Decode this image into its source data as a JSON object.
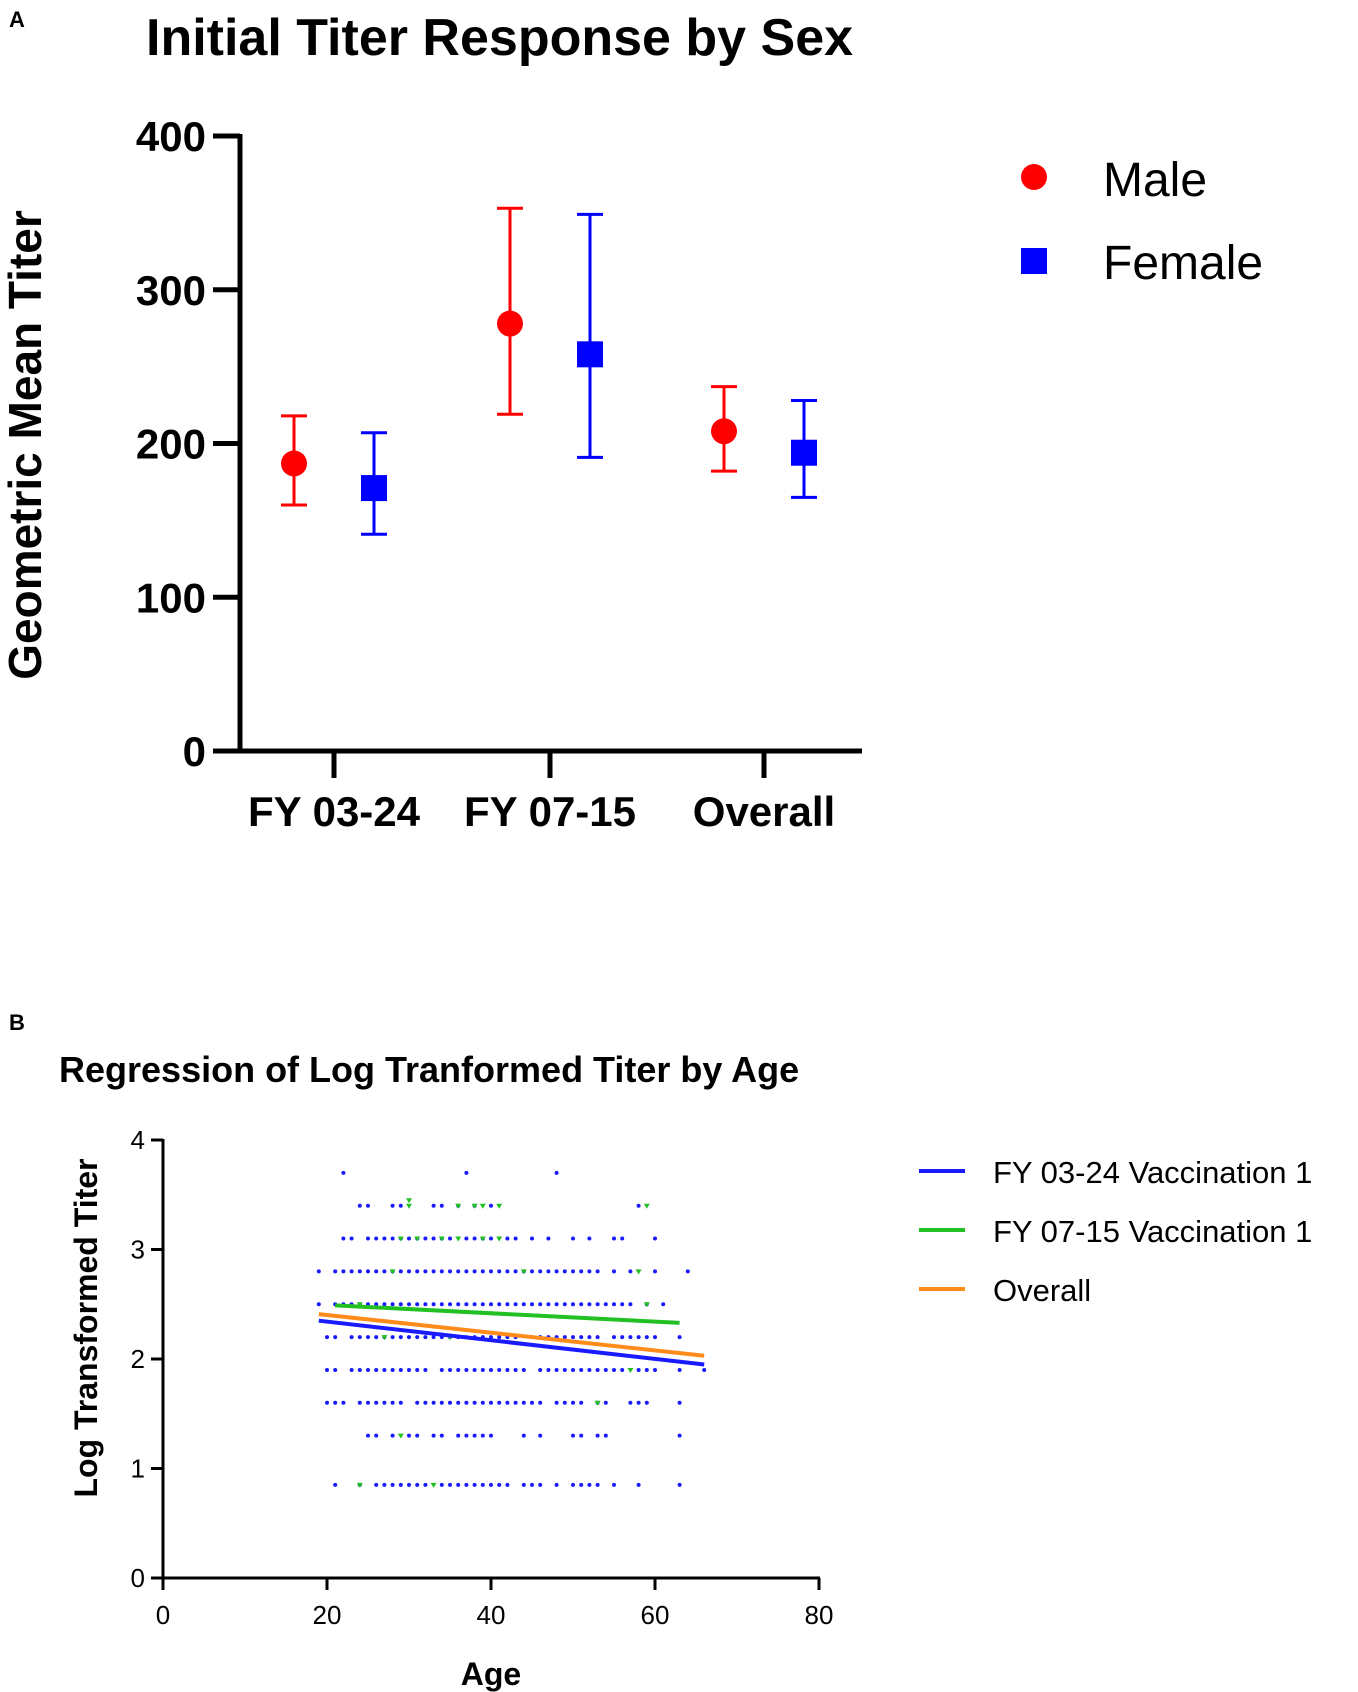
{
  "figure": {
    "panels": [
      "A",
      "B"
    ]
  },
  "chart_data": [
    {
      "type": "scatter",
      "title": "Initial Titer Response by Sex",
      "xlabel": "",
      "ylabel": "Geometric  Mean  Titer",
      "categories": [
        "FY 03-24",
        "FY 07-15",
        "Overall"
      ],
      "ylim": [
        0,
        400
      ],
      "yticks": [
        0,
        100,
        200,
        300,
        400
      ],
      "series": [
        {
          "name": "Male",
          "color": "#ff0000",
          "marker": "circle",
          "values": [
            187,
            278,
            208
          ],
          "lower": [
            160,
            219,
            182
          ],
          "upper": [
            218,
            353,
            237
          ]
        },
        {
          "name": "Female",
          "color": "#0000ff",
          "marker": "square",
          "values": [
            171,
            258,
            194
          ],
          "lower": [
            141,
            191,
            165
          ],
          "upper": [
            207,
            349,
            228
          ]
        }
      ],
      "legend": "top-right"
    },
    {
      "type": "scatter",
      "title": "Regression of Log Tranformed Titer by Age",
      "xlabel": "Age",
      "ylabel": "Log Transformed Titer",
      "xlim": [
        0,
        80
      ],
      "ylim": [
        0,
        4
      ],
      "xticks": [
        0,
        20,
        40,
        60,
        80
      ],
      "yticks": [
        0,
        1,
        2,
        3,
        4
      ],
      "legend": "right",
      "lines": [
        {
          "name": "FY 03-24 Vaccination 1",
          "color": "#1a1aff",
          "x": [
            19,
            66
          ],
          "y": [
            2.35,
            1.95
          ]
        },
        {
          "name": "FY 07-15 Vaccination 1",
          "color": "#22c022",
          "x": [
            21,
            63
          ],
          "y": [
            2.49,
            2.33
          ]
        },
        {
          "name": "Overall",
          "color": "#ff8c1a",
          "x": [
            19,
            66
          ],
          "y": [
            2.41,
            2.03
          ]
        }
      ],
      "points_fy0324": [
        {
          "y": 3.7,
          "x": [
            22,
            37,
            48
          ]
        },
        {
          "y": 3.4,
          "x": [
            24,
            25,
            28,
            29,
            33,
            34,
            36,
            38,
            40,
            58
          ]
        },
        {
          "y": 3.1,
          "x": [
            22,
            23,
            25,
            26,
            27,
            28,
            29,
            30,
            31,
            32,
            33,
            34,
            35,
            37,
            38,
            39,
            40,
            42,
            43,
            45,
            47,
            50,
            52,
            55,
            56,
            60
          ]
        },
        {
          "y": 2.8,
          "x": [
            19,
            21,
            22,
            23,
            24,
            25,
            26,
            27,
            28,
            29,
            30,
            31,
            32,
            33,
            34,
            35,
            36,
            37,
            38,
            39,
            40,
            41,
            42,
            43,
            44,
            45,
            46,
            47,
            48,
            49,
            50,
            51,
            52,
            53,
            55,
            57,
            60,
            64
          ]
        },
        {
          "y": 2.5,
          "x": [
            19,
            21,
            22,
            23,
            24,
            25,
            26,
            27,
            28,
            29,
            30,
            31,
            32,
            33,
            34,
            35,
            36,
            37,
            38,
            39,
            40,
            41,
            42,
            43,
            44,
            45,
            46,
            47,
            48,
            49,
            50,
            51,
            52,
            53,
            54,
            55,
            56,
            57,
            59,
            61
          ]
        },
        {
          "y": 2.2,
          "x": [
            20,
            21,
            23,
            24,
            25,
            26,
            27,
            28,
            29,
            30,
            31,
            32,
            33,
            34,
            35,
            36,
            37,
            38,
            39,
            40,
            41,
            42,
            43,
            45,
            46,
            47,
            48,
            49,
            50,
            51,
            52,
            53,
            55,
            56,
            57,
            58,
            59,
            60,
            63
          ]
        },
        {
          "y": 1.9,
          "x": [
            20,
            21,
            23,
            24,
            25,
            26,
            27,
            28,
            29,
            30,
            31,
            32,
            34,
            35,
            36,
            37,
            38,
            39,
            40,
            41,
            42,
            43,
            44,
            46,
            47,
            48,
            49,
            50,
            51,
            52,
            53,
            54,
            55,
            56,
            58,
            59,
            60,
            63,
            66
          ]
        },
        {
          "y": 1.6,
          "x": [
            20,
            21,
            22,
            24,
            25,
            26,
            27,
            28,
            29,
            31,
            32,
            33,
            34,
            35,
            36,
            37,
            38,
            39,
            40,
            41,
            42,
            43,
            44,
            45,
            46,
            48,
            49,
            50,
            51,
            53,
            54,
            57,
            58,
            59,
            63
          ]
        },
        {
          "y": 1.3,
          "x": [
            25,
            26,
            28,
            30,
            31,
            33,
            34,
            36,
            37,
            38,
            39,
            40,
            44,
            46,
            50,
            51,
            53,
            54,
            63
          ]
        },
        {
          "y": 0.85,
          "x": [
            21,
            24,
            26,
            27,
            28,
            29,
            30,
            31,
            32,
            34,
            35,
            36,
            37,
            38,
            39,
            40,
            41,
            42,
            44,
            45,
            46,
            48,
            50,
            51,
            52,
            53,
            55,
            58,
            63
          ]
        }
      ],
      "points_fy0715": [
        {
          "y": 3.45,
          "x": [
            30
          ]
        },
        {
          "y": 3.4,
          "x": [
            30,
            36,
            38,
            39,
            41,
            59
          ]
        },
        {
          "y": 3.1,
          "x": [
            29,
            31,
            34,
            36,
            39,
            41
          ]
        },
        {
          "y": 2.8,
          "x": [
            28,
            44,
            58
          ]
        },
        {
          "y": 2.5,
          "x": [
            24,
            59
          ]
        },
        {
          "y": 2.2,
          "x": [
            27,
            35
          ]
        },
        {
          "y": 1.9,
          "x": [
            57
          ]
        },
        {
          "y": 1.6,
          "x": [
            53
          ]
        },
        {
          "y": 1.3,
          "x": [
            29
          ]
        },
        {
          "y": 0.85,
          "x": [
            24,
            33
          ]
        }
      ]
    }
  ]
}
